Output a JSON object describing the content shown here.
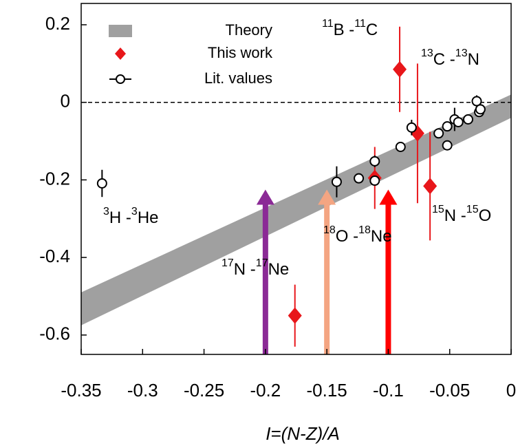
{
  "chart_data": {
    "type": "scatter",
    "xlabel": "I=(N-Z)/A",
    "xlim": [
      -0.35,
      0
    ],
    "ylim": [
      -0.65,
      0.255
    ],
    "xticks": [
      -0.35,
      -0.3,
      -0.25,
      -0.2,
      -0.15,
      -0.1,
      -0.05,
      0
    ],
    "yticks": [
      0.2,
      0,
      -0.2,
      -0.4,
      -0.6
    ],
    "zero_line": true,
    "legend": "upper left",
    "band": {
      "name": "Theory",
      "color": "#a0a0a0",
      "x": [
        -0.35,
        0
      ],
      "lower": [
        -0.575,
        -0.04
      ],
      "upper": [
        -0.49,
        0.02
      ]
    },
    "series": [
      {
        "name": "This work",
        "color": "#e8161a",
        "marker": "diamond",
        "x": [
          -0.0907,
          -0.0762,
          -0.066,
          -0.111,
          -0.176
        ],
        "values": [
          0.085,
          -0.08,
          -0.216,
          -0.195,
          -0.55
        ],
        "errors": [
          0.11,
          0.18,
          0.14,
          0.08,
          0.08
        ]
      },
      {
        "name": "Lit. values",
        "color": "#000000",
        "marker": "circle",
        "x": [
          -0.333,
          -0.142,
          -0.124,
          -0.111,
          -0.111,
          -0.09,
          -0.081,
          -0.059,
          -0.052,
          -0.052,
          -0.046,
          -0.043,
          -0.035,
          -0.028,
          -0.026,
          -0.025
        ],
        "values": [
          -0.209,
          -0.205,
          -0.196,
          -0.152,
          -0.202,
          -0.115,
          -0.065,
          -0.08,
          -0.111,
          -0.062,
          -0.044,
          -0.051,
          -0.044,
          0.003,
          -0.025,
          -0.018
        ],
        "errors": [
          0.035,
          0.04,
          null,
          0.015,
          null,
          null,
          0.02,
          null,
          null,
          null,
          0.03,
          null,
          null,
          0.015,
          null,
          null
        ]
      }
    ],
    "arrows": [
      {
        "x": -0.2,
        "y": -0.225,
        "color": "#8b2a96"
      },
      {
        "x": -0.15,
        "y": -0.225,
        "color": "#f4a582"
      },
      {
        "x": -0.1,
        "y": -0.225,
        "color": "#ff0000"
      }
    ],
    "annotations": [
      {
        "sup1": "11",
        "el1": "B -",
        "sup2": "11",
        "el2": "C"
      },
      {
        "sup1": "13",
        "el1": "C -",
        "sup2": "13",
        "el2": "N"
      },
      {
        "sup1": "3",
        "el1": "H -",
        "sup2": "3",
        "el2": "He"
      },
      {
        "sup1": "17",
        "el1": "N -",
        "sup2": "17",
        "el2": "Ne"
      },
      {
        "sup1": "18",
        "el1": "O -",
        "sup2": "18",
        "el2": "Ne"
      },
      {
        "sup1": "15",
        "el1": "N -",
        "sup2": "15",
        "el2": "O"
      }
    ]
  }
}
